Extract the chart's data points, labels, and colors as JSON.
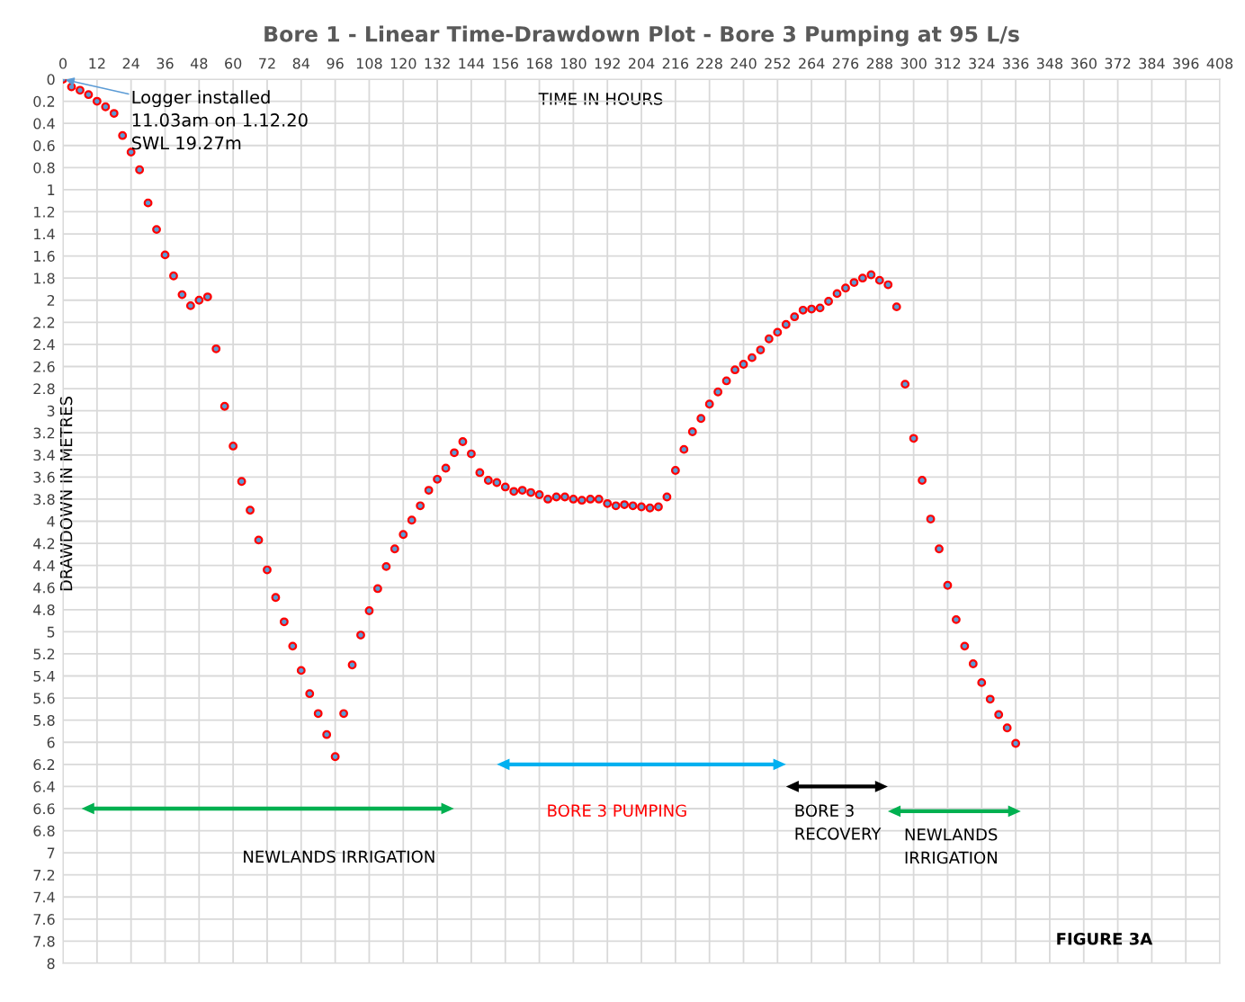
{
  "chart_data": {
    "type": "scatter",
    "title": "Bore 1 - Linear Time-Drawdown Plot - Bore 3 Pumping at 95 L/s",
    "xlabel": "TIME IN HOURS",
    "ylabel": "DRAWDOWN IN METRES",
    "series": [
      {
        "color": "#ff0000",
        "x": [
          0,
          3,
          6,
          9,
          12,
          15,
          18,
          21,
          24,
          27,
          30,
          33,
          36,
          39,
          42,
          45,
          48,
          51,
          54,
          57,
          60,
          63,
          66,
          69,
          72,
          75,
          78,
          81,
          84,
          87,
          90,
          93,
          96,
          99,
          102,
          105,
          108,
          111,
          114,
          117,
          120,
          123,
          126,
          129,
          132,
          135,
          138,
          141,
          144,
          147,
          150,
          153,
          156,
          159,
          162,
          165,
          168,
          171,
          174,
          177,
          180,
          183,
          186,
          189,
          192,
          195,
          198,
          201,
          204,
          207,
          210,
          213,
          216,
          219,
          222,
          225,
          228,
          231,
          234,
          237,
          240,
          243,
          246,
          249,
          252,
          255,
          258,
          261,
          264,
          267,
          270,
          273,
          276,
          279,
          282,
          285,
          288,
          291,
          294,
          297,
          300,
          303,
          306,
          309,
          312,
          315,
          318,
          321,
          324,
          327,
          330,
          333,
          336
        ],
        "values": [
          0,
          0.07,
          0.1,
          0.14,
          0.2,
          0.25,
          0.31,
          0.51,
          0.66,
          0.82,
          1.12,
          1.36,
          1.59,
          1.78,
          1.95,
          2.05,
          2.0,
          1.97,
          2.44,
          2.96,
          3.32,
          3.64,
          3.9,
          4.17,
          4.44,
          4.69,
          4.91,
          5.13,
          5.35,
          5.56,
          5.74,
          5.93,
          6.13,
          5.74,
          5.3,
          5.03,
          4.81,
          4.61,
          4.41,
          4.25,
          4.12,
          3.99,
          3.86,
          3.72,
          3.62,
          3.52,
          3.38,
          3.28,
          3.39,
          3.56,
          3.63,
          3.65,
          3.69,
          3.73,
          3.72,
          3.74,
          3.76,
          3.8,
          3.78,
          3.78,
          3.8,
          3.81,
          3.8,
          3.8,
          3.84,
          3.86,
          3.85,
          3.86,
          3.87,
          3.88,
          3.87,
          3.78,
          3.54,
          3.35,
          3.19,
          3.07,
          2.94,
          2.83,
          2.73,
          2.63,
          2.58,
          2.52,
          2.45,
          2.35,
          2.29,
          2.22,
          2.15,
          2.09,
          2.08,
          2.07,
          2.01,
          1.94,
          1.89,
          1.84,
          1.8,
          1.77,
          1.82,
          1.86,
          2.06,
          2.76,
          3.25,
          3.63,
          3.98,
          4.25,
          4.58,
          4.89,
          5.13,
          5.29,
          5.46,
          5.61,
          5.75,
          5.87,
          6.01
        ]
      }
    ],
    "xlim": [
      0,
      408
    ],
    "xticks": [
      0,
      12,
      24,
      36,
      48,
      60,
      72,
      84,
      96,
      108,
      120,
      132,
      144,
      156,
      168,
      180,
      192,
      204,
      216,
      228,
      240,
      252,
      264,
      276,
      288,
      300,
      312,
      324,
      336,
      348,
      360,
      372,
      384,
      396,
      408
    ],
    "ylim": [
      8,
      0
    ],
    "yticks": [
      0,
      0.2,
      0.4,
      0.6,
      0.8,
      1,
      1.2,
      1.4,
      1.6,
      1.8,
      2,
      2.2,
      2.4,
      2.6,
      2.8,
      3,
      3.2,
      3.4,
      3.6,
      3.8,
      4,
      4.2,
      4.4,
      4.6,
      4.8,
      5,
      5.2,
      5.4,
      5.6,
      5.8,
      6,
      6.2,
      6.4,
      6.6,
      6.8,
      7,
      7.2,
      7.4,
      7.6,
      7.8,
      8
    ],
    "grid": true,
    "marker": "circle",
    "annotations": [
      {
        "text": "Logger installed\n11.03am on 1.12.20\nSWL 19.27m",
        "x": 0,
        "y": 0
      },
      "NEWLANDS IRRIGATION",
      "BORE 3 PUMPING",
      "BORE 3\nRECOVERY",
      "NEWLANDS\nIRRIGATION",
      "FIGURE 3A"
    ]
  }
}
